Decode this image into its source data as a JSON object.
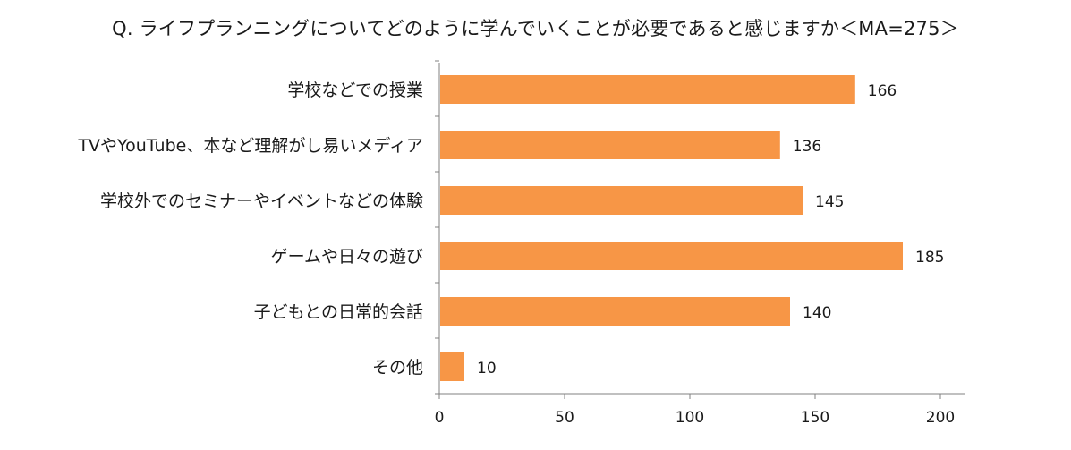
{
  "chart_data": {
    "type": "bar",
    "orientation": "horizontal",
    "title": "Q. ライフプランニングについてどのように学んでいくことが必要であると感じますか＜MA=275＞",
    "categories": [
      "学校などでの授業",
      "TVやYouTube、本など理解がし易いメディア",
      "学校外でのセミナーやイベントなどの体験",
      "ゲームや日々の遊び",
      "子どもとの日常的会話",
      "その他"
    ],
    "values": [
      166,
      136,
      145,
      185,
      140,
      10
    ],
    "xlim": [
      0,
      210
    ],
    "x_ticks": [
      "0",
      "50",
      "100",
      "150",
      "200"
    ],
    "grid": false,
    "legend": "none",
    "bar_color": "#F79646",
    "axis_color": "#808080"
  }
}
